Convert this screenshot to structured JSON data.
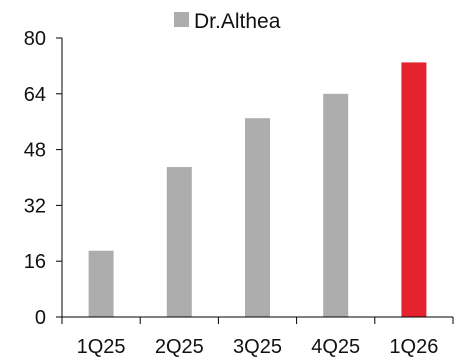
{
  "chart_data": {
    "type": "bar",
    "categories": [
      "1Q25",
      "2Q25",
      "3Q25",
      "4Q25",
      "1Q26"
    ],
    "series": [
      {
        "name": "Dr.Althea",
        "values": [
          19,
          43,
          57,
          64,
          73
        ]
      }
    ],
    "highlight_index": 4,
    "colors": {
      "bar": "#adadad",
      "highlight": "#e5232f",
      "axis": "#000000"
    },
    "ylim": [
      0,
      80
    ],
    "yticks": [
      0,
      16,
      32,
      48,
      64,
      80
    ],
    "grid": false,
    "legend": {
      "placement": "top-center"
    }
  }
}
